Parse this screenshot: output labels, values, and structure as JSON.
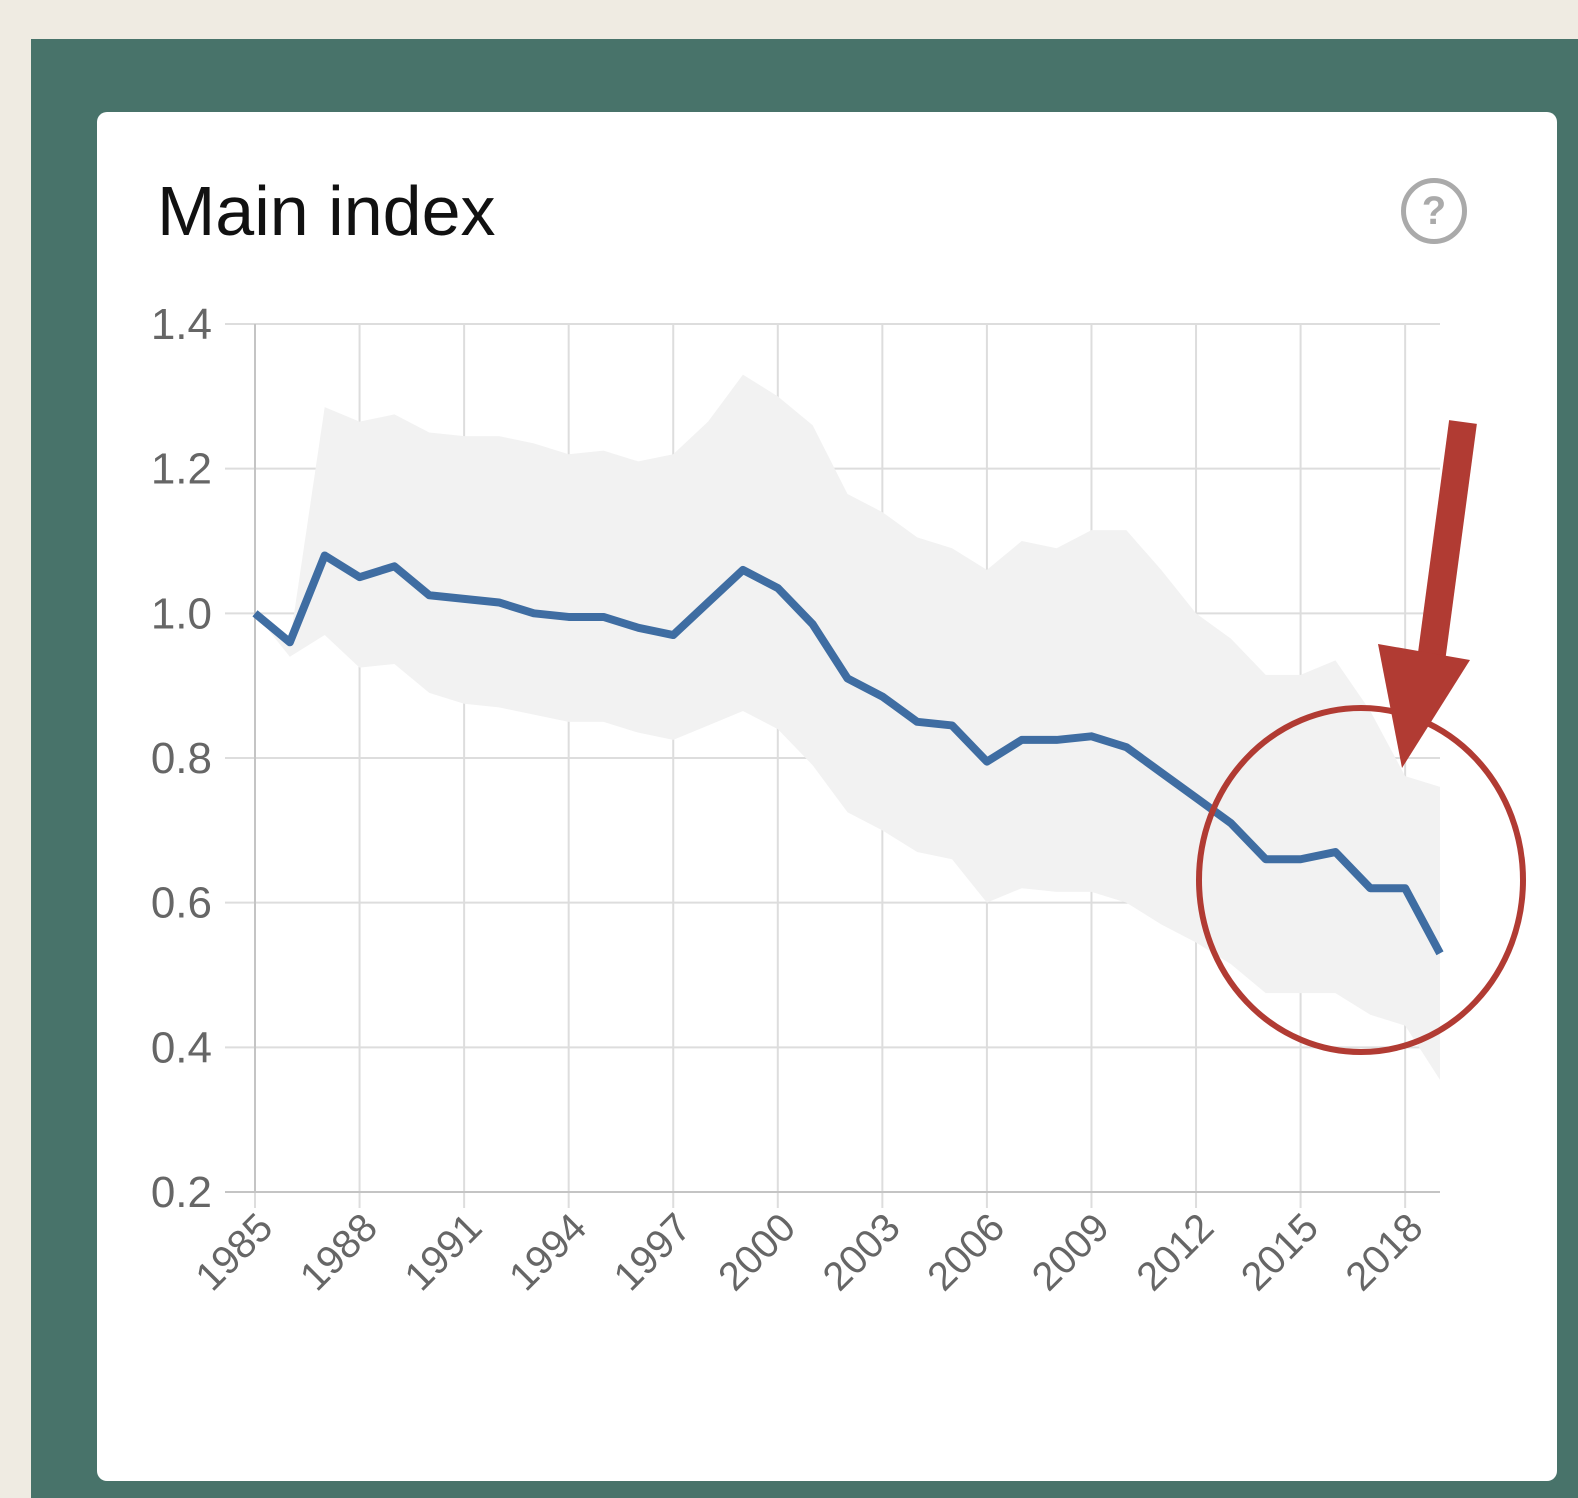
{
  "card": {
    "title": "Main index"
  },
  "help": {
    "icon": "question-circle-icon",
    "glyph": "?"
  },
  "chart_data": {
    "type": "line",
    "title": "Main index",
    "xlabel": "",
    "ylabel": "",
    "xlim": [
      1985,
      2019
    ],
    "ylim": [
      0.2,
      1.4
    ],
    "x_ticks": [
      1985,
      1988,
      1991,
      1994,
      1997,
      2000,
      2003,
      2006,
      2009,
      2012,
      2015,
      2018
    ],
    "y_ticks": [
      "0.2",
      "0.4",
      "0.6",
      "0.8",
      "1.0",
      "1.2",
      "1.4"
    ],
    "grid": true,
    "legend": "none",
    "x": [
      1985,
      1986,
      1987,
      1988,
      1989,
      1990,
      1991,
      1992,
      1993,
      1994,
      1995,
      1996,
      1997,
      1998,
      1999,
      2000,
      2001,
      2002,
      2003,
      2004,
      2005,
      2006,
      2007,
      2008,
      2009,
      2010,
      2011,
      2012,
      2013,
      2014,
      2015,
      2016,
      2017,
      2018,
      2019
    ],
    "series": [
      {
        "values": [
          1.0,
          0.96,
          1.08,
          1.05,
          1.065,
          1.025,
          1.02,
          1.015,
          1.0,
          0.995,
          0.995,
          0.98,
          0.97,
          1.015,
          1.06,
          1.035,
          0.985,
          0.91,
          0.885,
          0.85,
          0.845,
          0.795,
          0.825,
          0.825,
          0.83,
          0.815,
          0.78,
          0.745,
          0.71,
          0.66,
          0.66,
          0.67,
          0.62,
          0.62,
          0.53
        ],
        "color": "#3f6da2"
      }
    ],
    "band": {
      "upper": [
        1.0,
        0.96,
        1.285,
        1.265,
        1.275,
        1.25,
        1.245,
        1.245,
        1.235,
        1.22,
        1.225,
        1.21,
        1.22,
        1.265,
        1.33,
        1.3,
        1.26,
        1.165,
        1.14,
        1.105,
        1.09,
        1.06,
        1.1,
        1.09,
        1.115,
        1.115,
        1.06,
        1.0,
        0.965,
        0.915,
        0.915,
        0.935,
        0.865,
        0.775,
        0.76
      ],
      "lower": [
        1.0,
        0.94,
        0.97,
        0.925,
        0.93,
        0.89,
        0.875,
        0.87,
        0.86,
        0.85,
        0.85,
        0.835,
        0.825,
        0.845,
        0.865,
        0.84,
        0.79,
        0.725,
        0.7,
        0.67,
        0.66,
        0.6,
        0.62,
        0.615,
        0.615,
        0.6,
        0.57,
        0.545,
        0.515,
        0.475,
        0.475,
        0.475,
        0.445,
        0.43,
        0.355
      ],
      "color": "#f2f2f2"
    },
    "annotations": [
      {
        "type": "circle",
        "color": "#b13b33",
        "around": {
          "x": [
            2013,
            2019
          ],
          "y": [
            0.5,
            0.72
          ]
        }
      },
      {
        "type": "arrow",
        "color": "#b13b33",
        "points_to": {
          "x": 2018,
          "y": 0.72
        }
      }
    ]
  }
}
